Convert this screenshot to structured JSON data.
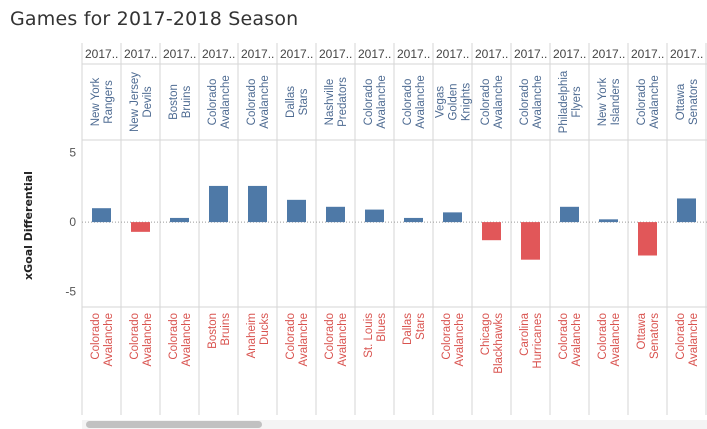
{
  "title": "Games for 2017-2018 Season",
  "colors": {
    "positive": "#4e79a7",
    "negative": "#e15759",
    "home_text": "#4e6b92",
    "away_text": "#d9534f"
  },
  "chart_data": {
    "type": "bar",
    "ylabel": "xGoal Differential",
    "ylim": [
      -6.1,
      5.9
    ],
    "yticks": [
      5,
      0,
      -5
    ],
    "grid": false,
    "season_label": "2017..",
    "categories": [
      {
        "team": "New York Rangers",
        "opponent": "Colorado Avalanche"
      },
      {
        "team": "New Jersey Devils",
        "opponent": "Colorado Avalanche"
      },
      {
        "team": "Boston Bruins",
        "opponent": "Colorado Avalanche"
      },
      {
        "team": "Colorado Avalanche",
        "opponent": "Boston Bruins"
      },
      {
        "team": "Colorado Avalanche",
        "opponent": "Anaheim Ducks"
      },
      {
        "team": "Dallas Stars",
        "opponent": "Colorado Avalanche"
      },
      {
        "team": "Nashville Predators",
        "opponent": "Colorado Avalanche"
      },
      {
        "team": "Colorado Avalanche",
        "opponent": "St. Louis Blues"
      },
      {
        "team": "Colorado Avalanche",
        "opponent": "Dallas Stars"
      },
      {
        "team": "Vegas Golden Knights",
        "opponent": "Colorado Avalanche"
      },
      {
        "team": "Colorado Avalanche",
        "opponent": "Chicago Blackhawks"
      },
      {
        "team": "Colorado Avalanche",
        "opponent": "Carolina Hurricanes"
      },
      {
        "team": "Philadelphia Flyers",
        "opponent": "Colorado Avalanche"
      },
      {
        "team": "New York Islanders",
        "opponent": "Colorado Avalanche"
      },
      {
        "team": "Colorado Avalanche",
        "opponent": "Ottawa Senators"
      },
      {
        "team": "Ottawa Senators",
        "opponent": "Colorado Avalanche"
      }
    ],
    "values": [
      1.0,
      -0.7,
      0.3,
      2.6,
      2.6,
      1.6,
      1.1,
      0.9,
      0.3,
      0.7,
      -1.3,
      -2.7,
      1.1,
      0.2,
      -2.4,
      1.7
    ]
  }
}
